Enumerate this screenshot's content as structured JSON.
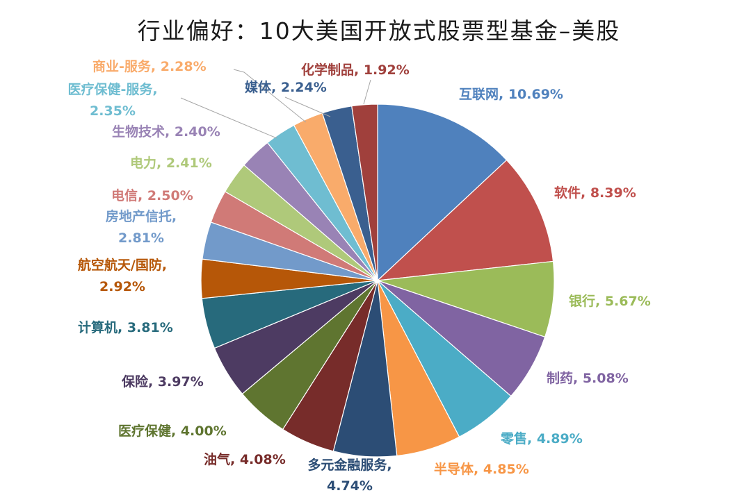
{
  "chart_data": {
    "type": "pie",
    "title": "行业偏好：10大美国开放式股票型基金–美股",
    "slices": [
      {
        "name": "互联网",
        "value": 10.69,
        "text": "互联网, 10.69%",
        "color": "#4f81bd",
        "label_color": "#4f81bd"
      },
      {
        "name": "软件",
        "value": 8.39,
        "text": "软件, 8.39%",
        "color": "#c0504d",
        "label_color": "#c0504d"
      },
      {
        "name": "银行",
        "value": 5.67,
        "text": "银行, 5.67%",
        "color": "#9bbb59",
        "label_color": "#9bbb59"
      },
      {
        "name": "制药",
        "value": 5.08,
        "text": "制药, 5.08%",
        "color": "#8064a2",
        "label_color": "#8064a2"
      },
      {
        "name": "零售",
        "value": 4.89,
        "text": "零售, 4.89%",
        "color": "#4bacc6",
        "label_color": "#4bacc6"
      },
      {
        "name": "半导体",
        "value": 4.85,
        "text": "半导体, 4.85%",
        "color": "#f79646",
        "label_color": "#f79646"
      },
      {
        "name": "多元金融服务",
        "value": 4.74,
        "text": "多元金融服务,\n4.74%",
        "color": "#2c4d75",
        "label_color": "#2c4d75"
      },
      {
        "name": "油气",
        "value": 4.08,
        "text": "油气, 4.08%",
        "color": "#772c2a",
        "label_color": "#772c2a"
      },
      {
        "name": "医疗保健",
        "value": 4.0,
        "text": "医疗保健, 4.00%",
        "color": "#5f7530",
        "label_color": "#5f7530"
      },
      {
        "name": "保险",
        "value": 3.97,
        "text": "保险, 3.97%",
        "color": "#4d3b62",
        "label_color": "#4d3b62"
      },
      {
        "name": "计算机",
        "value": 3.81,
        "text": "计算机, 3.81%",
        "color": "#276a7c",
        "label_color": "#276a7c"
      },
      {
        "name": "航空航天/国防",
        "value": 2.92,
        "text": "航空航天/国防,\n2.92%",
        "color": "#b65708",
        "label_color": "#b65708"
      },
      {
        "name": "房地产信托",
        "value": 2.81,
        "text": "房地产信托,\n2.81%",
        "color": "#729aca",
        "label_color": "#729aca"
      },
      {
        "name": "电信",
        "value": 2.5,
        "text": "电信, 2.50%",
        "color": "#d07a77",
        "label_color": "#d07a77"
      },
      {
        "name": "电力",
        "value": 2.41,
        "text": "电力, 2.41%",
        "color": "#afc97a",
        "label_color": "#afc97a"
      },
      {
        "name": "生物技术",
        "value": 2.4,
        "text": "生物技术, 2.40%",
        "color": "#9983b5",
        "label_color": "#9983b5"
      },
      {
        "name": "医疗保健-服务",
        "value": 2.35,
        "text": "医疗保健-服务,\n2.35%",
        "color": "#6fbdd1",
        "label_color": "#6fbdd1"
      },
      {
        "name": "商业-服务",
        "value": 2.28,
        "text": "商业-服务, 2.28%",
        "color": "#f9ab6b",
        "label_color": "#f9ab6b"
      },
      {
        "name": "媒体",
        "value": 2.24,
        "text": "媒体, 2.24%",
        "color": "#3a5f8f",
        "label_color": "#3a5f8f"
      },
      {
        "name": "化学制品",
        "value": 1.92,
        "text": "化学制品, 1.92%",
        "color": "#a0403c",
        "label_color": "#a0403c"
      }
    ]
  }
}
